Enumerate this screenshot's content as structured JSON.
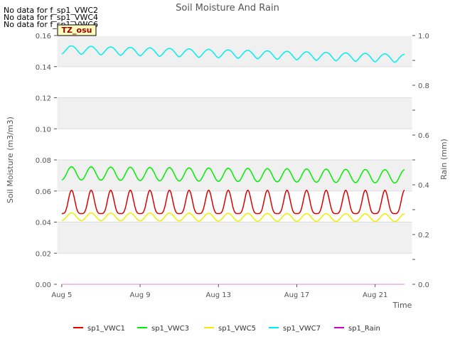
{
  "no_data_notes": [
    "No data for f_sp1_VWC2",
    "No data for f_sp1_VWC4",
    "No data for f_sp1_VWC6"
  ],
  "site_badge": "TZ_osu",
  "chart_data": {
    "type": "line",
    "title": "Soil Moisture And Rain",
    "xlabel": "Time",
    "ylabel": "Soil Moisture (m3/m3)",
    "y2label": "Rain (mm)",
    "x_start_day": 5,
    "x_end_day": 22.5,
    "x_domain": [
      4.75,
      22.9
    ],
    "x_ticks": [
      {
        "day": 5,
        "label": "Aug 5"
      },
      {
        "day": 9,
        "label": "Aug 9"
      },
      {
        "day": 13,
        "label": "Aug 13"
      },
      {
        "day": 17,
        "label": "Aug 17"
      },
      {
        "day": 21,
        "label": "Aug 21"
      }
    ],
    "ylim": [
      0,
      0.16
    ],
    "yticks": [
      "0.00",
      "0.02",
      "0.04",
      "0.06",
      "0.08",
      "0.10",
      "0.12",
      "0.14",
      "0.16"
    ],
    "y2lim": [
      0,
      1.0
    ],
    "y2ticks": [
      "0.0",
      "0.2",
      "0.4",
      "0.6",
      "0.8",
      "1.0"
    ],
    "grid": true,
    "band_color": "#f0f0f0",
    "legend_position": "bottom",
    "series": [
      {
        "name": "sp1_VWC1",
        "color": "#dd0000",
        "base": 0.0455,
        "peak": 0.0605,
        "trend": -1e-06,
        "sharp": 4
      },
      {
        "name": "sp1_VWC3",
        "color": "#00ee00",
        "base": 0.0672,
        "peak": 0.0757,
        "trend": -0.00012,
        "sharp": 2
      },
      {
        "name": "sp1_VWC5",
        "color": "#eeee00",
        "base": 0.041,
        "peak": 0.046,
        "trend": -4e-05,
        "sharp": 2
      },
      {
        "name": "sp1_VWC7",
        "color": "#00eeee",
        "base": 0.1482,
        "peak": 0.1535,
        "trend": -0.00032,
        "sharp": 1.5
      },
      {
        "name": "sp1_Rain",
        "color": "#cc00cc",
        "axis": "y2",
        "constant": 0
      }
    ]
  }
}
